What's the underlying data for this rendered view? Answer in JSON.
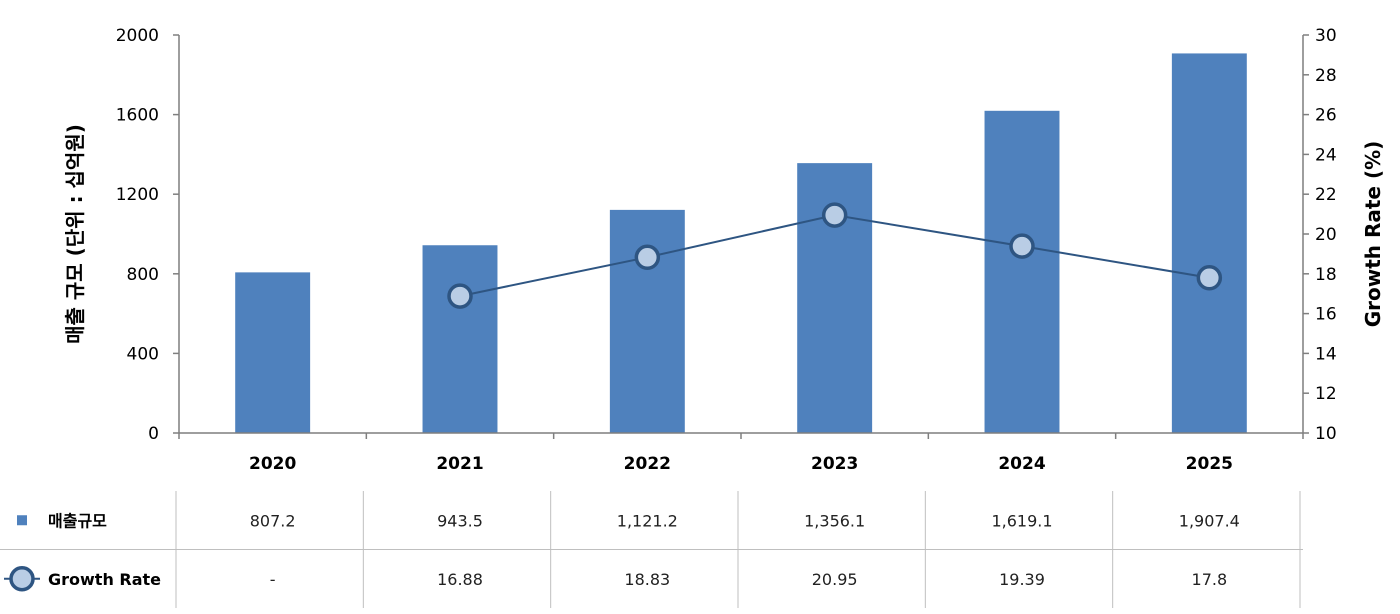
{
  "chart_data": {
    "type": "bar",
    "title": "",
    "categories": [
      "2020",
      "2021",
      "2022",
      "2023",
      "2024",
      "2025"
    ],
    "series": [
      {
        "name": "매출규모",
        "type": "bar",
        "axis": "left",
        "color": "#4f81bd",
        "values": [
          807.2,
          943.5,
          1121.2,
          1356.1,
          1619.1,
          1907.4
        ],
        "labels": [
          "807.2",
          "943.5",
          "1,121.2",
          "1,356.1",
          "1,619.1",
          "1,907.4"
        ]
      },
      {
        "name": "Growth Rate",
        "type": "line",
        "axis": "right",
        "color": "#2e5582",
        "marker_fill": "#b9cde5",
        "values": [
          null,
          16.88,
          18.83,
          20.95,
          19.39,
          17.8
        ],
        "labels": [
          "-",
          "16.88",
          "18.83",
          "20.95",
          "19.39",
          "17.8"
        ]
      }
    ],
    "ylabel": "매출 규모 (단위 : 십억원)",
    "ylabel_right": "Growth Rate (%)",
    "ylim": [
      0,
      2000
    ],
    "ylim_right": [
      10,
      30
    ],
    "yticks": [
      "0",
      "400",
      "800",
      "1200",
      "1600",
      "2000"
    ],
    "yticks_right": [
      "10",
      "12",
      "14",
      "16",
      "18",
      "20",
      "22",
      "24",
      "26",
      "28",
      "30"
    ],
    "grid": false,
    "legend": "data-table"
  }
}
